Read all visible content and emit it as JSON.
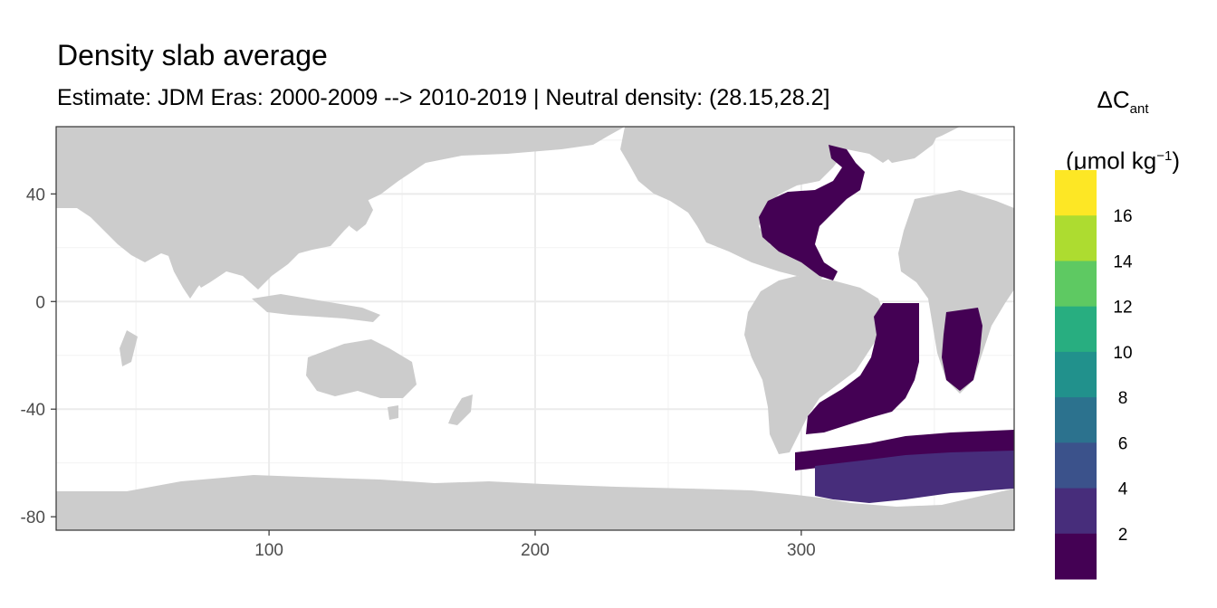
{
  "title": "Density slab average",
  "subtitle": "Estimate: JDM Eras: 2000-2009 --> 2010-2019 | Neutral density: (28.15,28.2]",
  "legend": {
    "symbol": "ΔC",
    "subscript": "ant",
    "unit_prefix": "(μmol kg",
    "unit_exponent": "−1",
    "unit_suffix": ")",
    "labels": [
      "2",
      "4",
      "6",
      "8",
      "10",
      "12",
      "14",
      "16"
    ],
    "colors": [
      "#440154",
      "#472d7b",
      "#3b528b",
      "#2c728e",
      "#21918c",
      "#28ae80",
      "#5ec962",
      "#addc30",
      "#fde725"
    ]
  },
  "chart_data": {
    "type": "heatmap",
    "title": "Density slab average",
    "subtitle": "Estimate: JDM Eras: 2000-2009 --> 2010-2019 | Neutral density: (28.15,28.2]",
    "xlabel": "",
    "ylabel": "",
    "xlim": [
      20,
      380
    ],
    "ylim": [
      -85,
      65
    ],
    "x_ticks": [
      100,
      200,
      300
    ],
    "y_ticks": [
      40,
      0,
      -40,
      -80
    ],
    "grid": true,
    "legend_position": "right",
    "land_color": "#cccccc",
    "regions": [
      {
        "name": "North Atlantic",
        "value_bin": "0-2"
      },
      {
        "name": "South Atlantic",
        "value_bin": "0-2"
      },
      {
        "name": "Southern Ocean Atlantic sector",
        "value_bin": "2-4"
      }
    ]
  }
}
